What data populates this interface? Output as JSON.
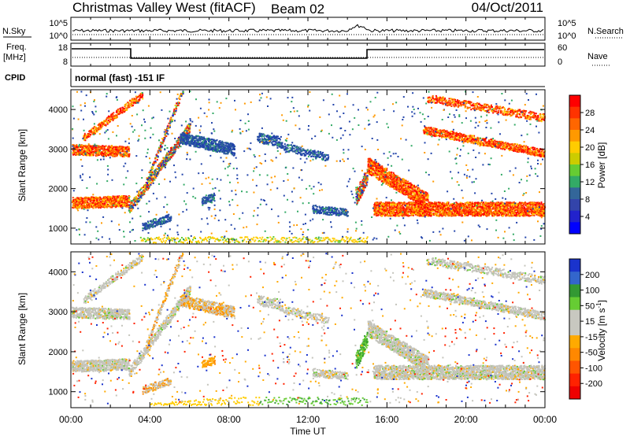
{
  "header": {
    "station": "Christmas Valley West (fitACF)",
    "beam": "Beam 02",
    "date": "04/Oct/2011"
  },
  "top_panels": {
    "nsky": {
      "label": "N.Sky",
      "y_ticks": [
        "10^5",
        "10^0"
      ]
    },
    "nsearch": {
      "label": "N.Search",
      "y_ticks": [
        "10^5",
        "10^0"
      ]
    },
    "freq": {
      "label_line1": "Freq.",
      "label_line2": "[MHz]",
      "y_ticks": [
        "18",
        "8"
      ]
    },
    "nave": {
      "label": "Nave",
      "y_ticks": [
        "60",
        "0"
      ]
    },
    "cpid": {
      "label": "CPID",
      "text": "normal (fast) -151 IF"
    }
  },
  "chart_data": [
    {
      "type": "heatmap",
      "name": "power",
      "ylabel": "Slant Range [km]",
      "y_ticks": [
        1000,
        2000,
        3000,
        4000
      ],
      "ylim": [
        600,
        4500
      ],
      "x_ticks": [
        "00:00",
        "04:00",
        "08:00",
        "12:00",
        "16:00",
        "20:00",
        "00:00"
      ],
      "xlim_hours": [
        0,
        24
      ],
      "colorbar": {
        "label": "Power [dB]",
        "ticks": [
          "28",
          "24",
          "20",
          "16",
          "12",
          "8",
          "4"
        ],
        "colors": [
          "#ff0000",
          "#ff3300",
          "#ff6600",
          "#ff9900",
          "#ffcc00",
          "#cccc00",
          "#66cc33",
          "#33aa66",
          "#336699",
          "#3344aa",
          "#2222cc",
          "#0000ff"
        ]
      }
    },
    {
      "type": "heatmap",
      "name": "velocity",
      "xlabel": "Time UT",
      "ylabel": "Slant Range [km]",
      "y_ticks": [
        1000,
        2000,
        3000,
        4000
      ],
      "ylim": [
        600,
        4500
      ],
      "x_ticks": [
        "00:00",
        "04:00",
        "08:00",
        "12:00",
        "16:00",
        "20:00",
        "00:00"
      ],
      "xlim_hours": [
        0,
        24
      ],
      "colorbar": {
        "label_main": "Velocity [m s",
        "label_sup": "-1",
        "label_end": "]",
        "ticks": [
          "200",
          "100",
          "50",
          "15",
          "-15",
          "-50",
          "-100",
          "-200"
        ],
        "colors": [
          "#1a33cc",
          "#3366cc",
          "#339933",
          "#66cc33",
          "#c8c8c0",
          "#c8c8c0",
          "#ffaa00",
          "#ff8800",
          "#ff5500",
          "#ff2200",
          "#ee0000"
        ]
      }
    }
  ]
}
